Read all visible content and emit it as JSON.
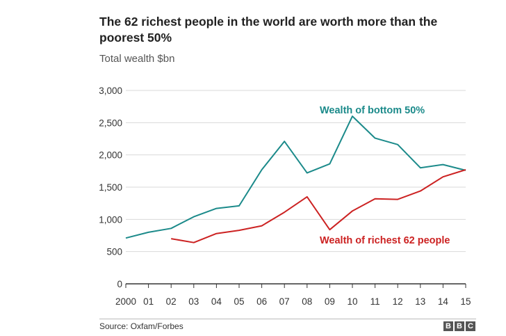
{
  "header": {
    "title": "The 62 richest people in the world are worth more than the poorest 50%",
    "subtitle": "Total wealth $bn"
  },
  "footer": {
    "source": "Source: Oxfam/Forbes",
    "logo": [
      "B",
      "B",
      "C"
    ]
  },
  "colors": {
    "bottom50": "#1b8a8a",
    "richest62": "#cc2222",
    "grid": "#d9d9d9",
    "axis": "#333333"
  },
  "chart_data": {
    "type": "line",
    "title": "The 62 richest people in the world are worth more than the poorest 50%",
    "ylabel": "Total wealth $bn",
    "xlabel": "",
    "x": [
      2000,
      2001,
      2002,
      2003,
      2004,
      2005,
      2006,
      2007,
      2008,
      2009,
      2010,
      2011,
      2012,
      2013,
      2014,
      2015
    ],
    "x_tick_labels": [
      "2000",
      "01",
      "02",
      "03",
      "04",
      "05",
      "06",
      "07",
      "08",
      "09",
      "10",
      "11",
      "12",
      "13",
      "14",
      "15"
    ],
    "ylim": [
      0,
      3000
    ],
    "y_ticks": [
      0,
      500,
      1000,
      1500,
      2000,
      2500,
      3000
    ],
    "y_tick_labels": [
      "0",
      "500",
      "1,000",
      "1,500",
      "2,000",
      "2,500",
      "3,000"
    ],
    "grid": true,
    "series": [
      {
        "name": "Wealth of bottom 50%",
        "key": "bottom50",
        "values": [
          710,
          800,
          860,
          1040,
          1170,
          1210,
          1770,
          2210,
          1720,
          1860,
          2600,
          2260,
          2160,
          1800,
          1850,
          1760
        ]
      },
      {
        "name": "Wealth of richest 62 people",
        "key": "richest62",
        "values": [
          null,
          null,
          700,
          640,
          780,
          830,
          900,
          1110,
          1350,
          840,
          1130,
          1320,
          1310,
          1440,
          1660,
          1770
        ]
      }
    ]
  }
}
